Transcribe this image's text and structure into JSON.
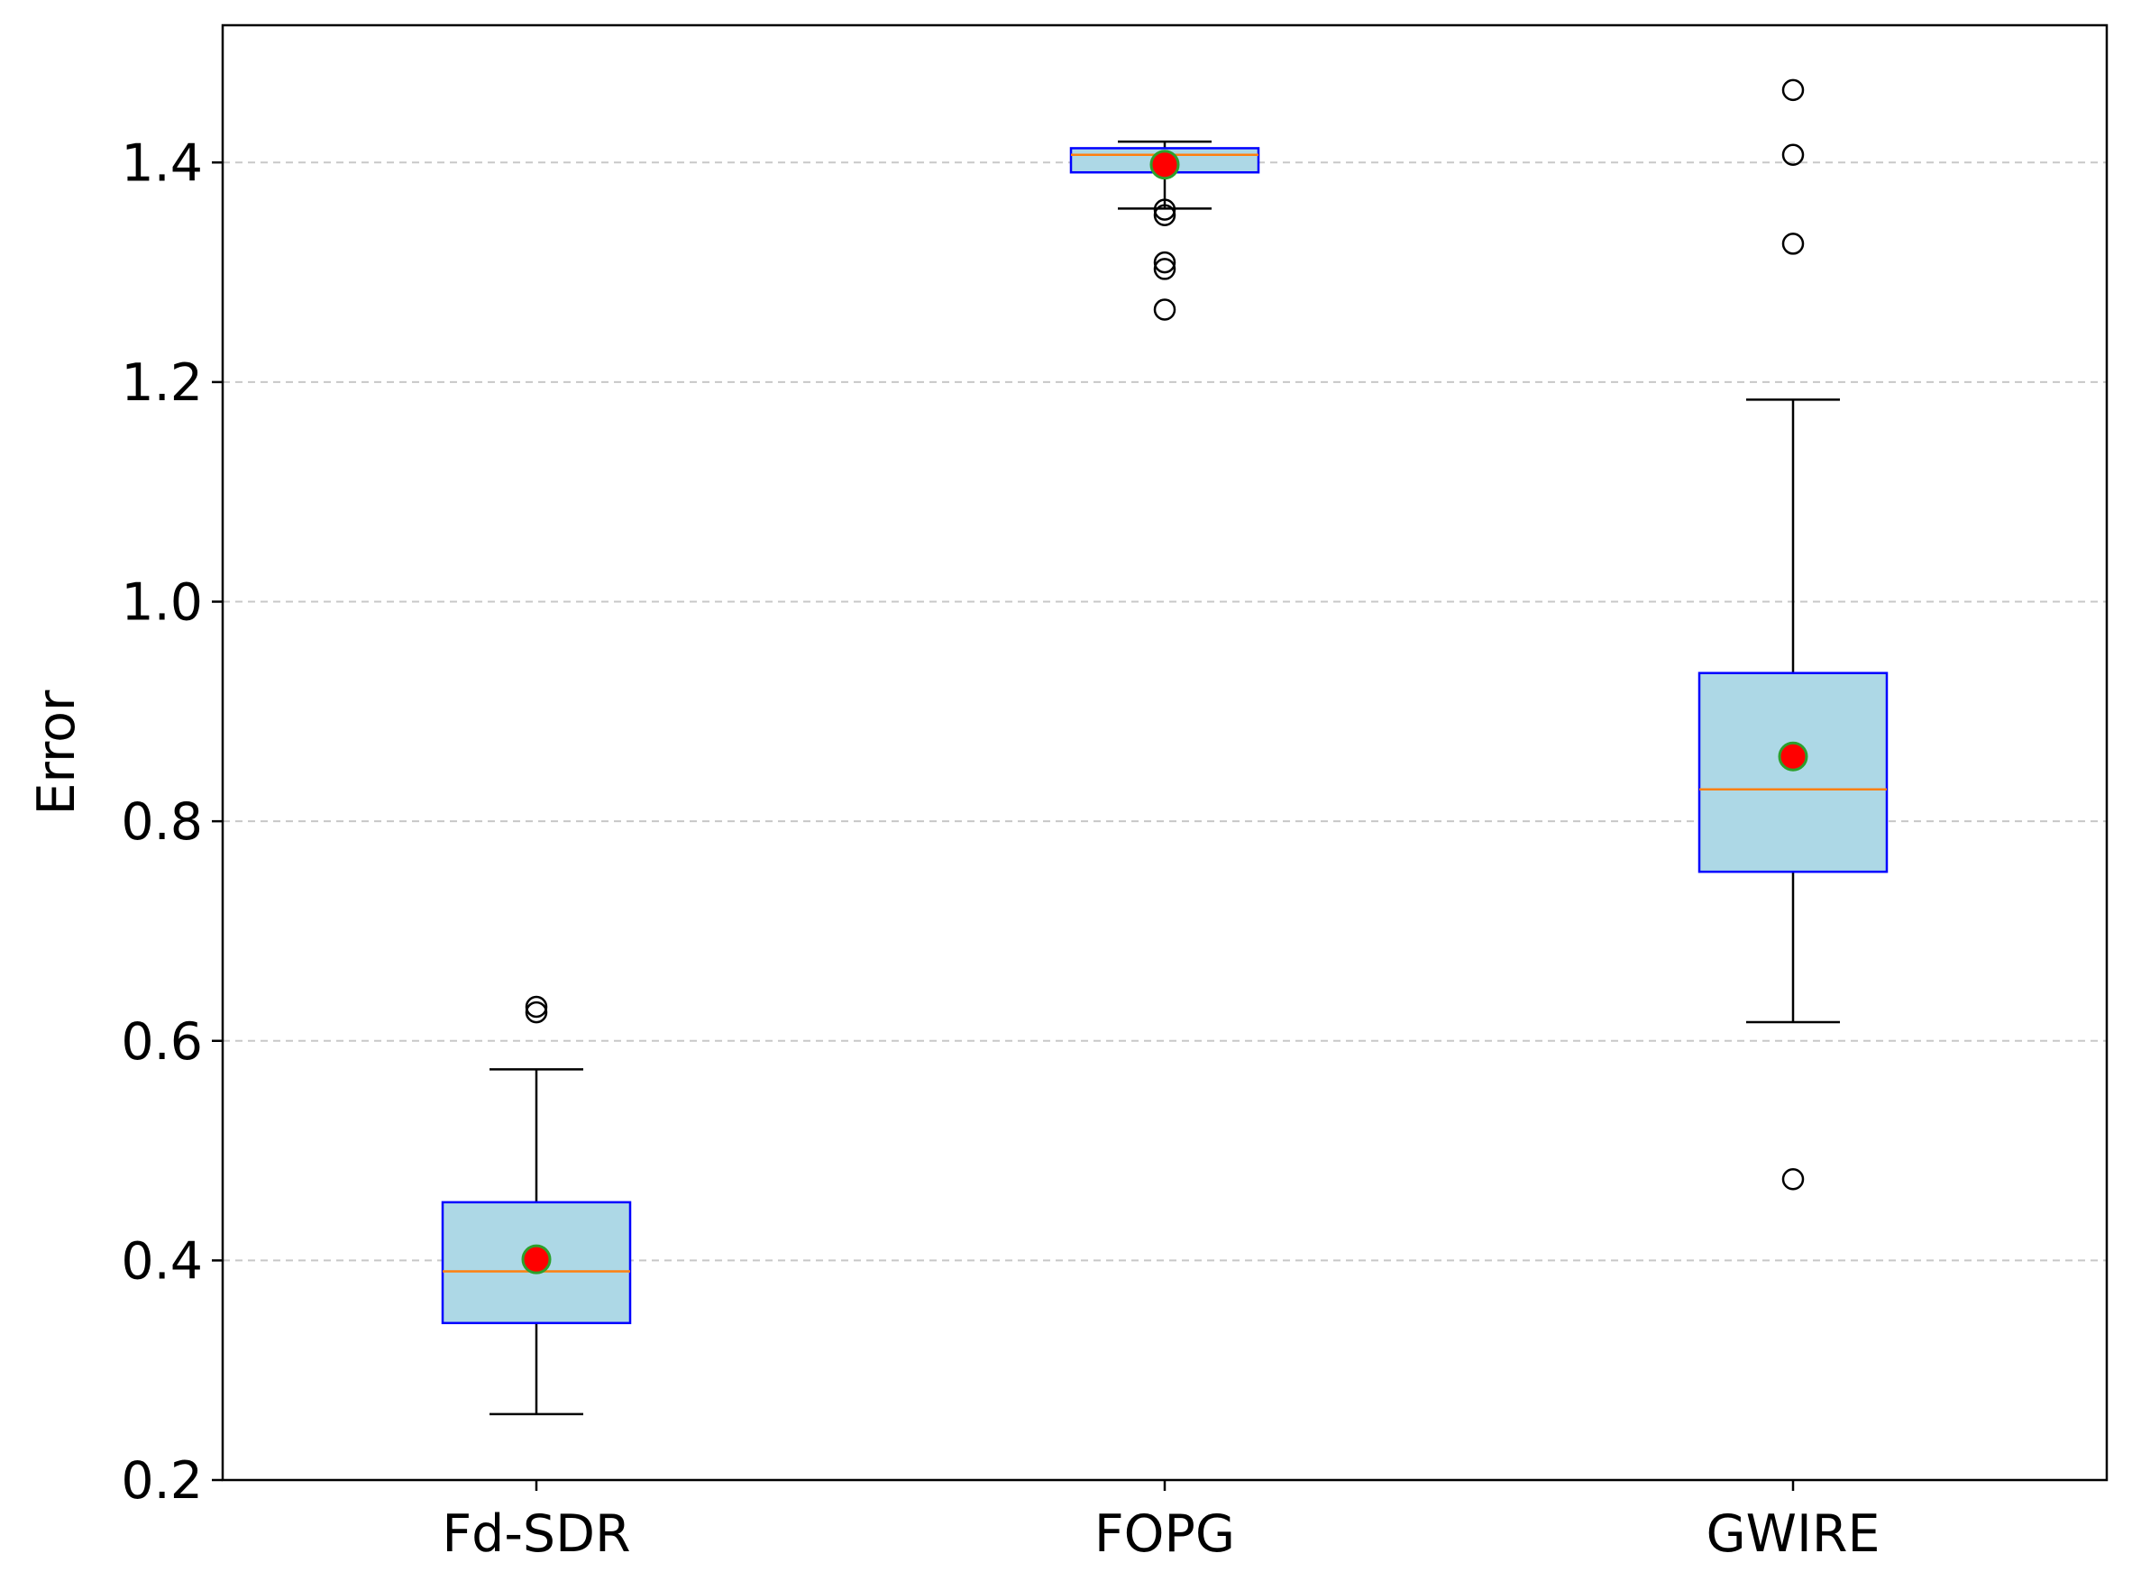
{
  "chart_data": {
    "type": "box",
    "title": "",
    "xlabel": "",
    "ylabel": "Error",
    "ylim": [
      0.2,
      1.525
    ],
    "yticks": [
      0.2,
      0.4,
      0.6,
      0.8,
      1.0,
      1.2,
      1.4
    ],
    "ytick_labels": [
      "0.2",
      "0.4",
      "0.6",
      "0.8",
      "1.0",
      "1.2",
      "1.4"
    ],
    "grid": "y-dashed",
    "categories": [
      "Fd-SDR",
      "FOPG",
      "GWIRE"
    ],
    "boxes": [
      {
        "name": "Fd-SDR",
        "whisker_low": 0.26,
        "q1": 0.343,
        "median": 0.39,
        "q3": 0.453,
        "whisker_high": 0.574,
        "mean": 0.401,
        "outliers": [
          0.626,
          0.631
        ]
      },
      {
        "name": "FOPG",
        "whisker_low": 1.358,
        "q1": 1.391,
        "median": 1.407,
        "q3": 1.413,
        "whisker_high": 1.419,
        "mean": 1.398,
        "outliers": [
          1.352,
          1.357,
          1.303,
          1.309,
          1.266
        ]
      },
      {
        "name": "GWIRE",
        "whisker_low": 0.617,
        "q1": 0.754,
        "median": 0.829,
        "q3": 0.935,
        "whisker_high": 1.184,
        "mean": 0.859,
        "outliers": [
          0.474,
          1.326,
          1.407,
          1.466
        ]
      }
    ],
    "colors": {
      "box_fill": "#add8e6",
      "box_edge": "#0000ff",
      "median": "#ff7f0e",
      "mean_fill": "#ff0000",
      "mean_edge": "#2ca02c",
      "whisker": "#000000",
      "outlier_edge": "#000000",
      "grid": "#c8c8c8",
      "frame": "#000000"
    }
  }
}
